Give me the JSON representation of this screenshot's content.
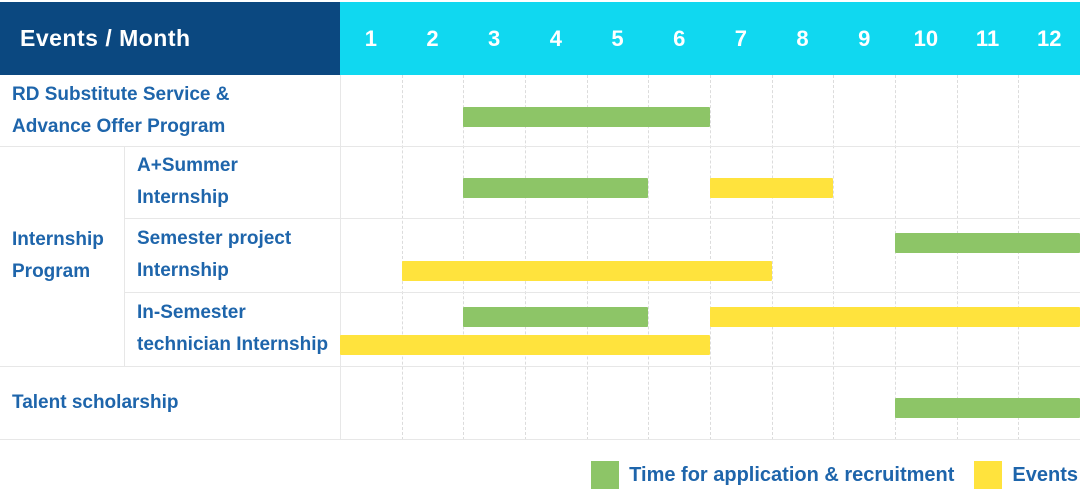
{
  "header": {
    "title": "Events / Month",
    "months": [
      "1",
      "2",
      "3",
      "4",
      "5",
      "6",
      "7",
      "8",
      "9",
      "10",
      "11",
      "12"
    ]
  },
  "colors": {
    "header_bg": "#0b4880",
    "months_bg": "#10d8f0",
    "header_text": "#ffffff",
    "label_text": "#1e65ab",
    "recruitment": "#8dc567",
    "event": "#ffe33d",
    "row_line": "#e7e7e7",
    "month_gridline": "#dcdcdc"
  },
  "legend": {
    "items": [
      {
        "series": "recruitment",
        "label": "Time for application & recruitment"
      },
      {
        "series": "event",
        "label": "Events"
      }
    ]
  },
  "chart_data": {
    "type": "gantt",
    "title": "Events / Month",
    "x_axis": {
      "label": "Month",
      "ticks": [
        1,
        2,
        3,
        4,
        5,
        6,
        7,
        8,
        9,
        10,
        11,
        12
      ],
      "range": [
        1,
        12
      ]
    },
    "series_legend": {
      "recruitment": "Time for application & recruitment",
      "event": "Events"
    },
    "group_label_lines": [
      "Internship",
      "Program"
    ],
    "rows": [
      {
        "label": "RD Substitute Service & Advance Offer Program",
        "label_lines": [
          "RD Substitute Service &",
          "Advance Offer Program"
        ],
        "group": null,
        "bars": [
          {
            "series": "recruitment",
            "start_month": 3,
            "end_month": 6,
            "lane": "single"
          }
        ]
      },
      {
        "label": "A+Summer Internship",
        "label_lines": [
          "A+Summer",
          "Internship"
        ],
        "group": "Internship Program",
        "bars": [
          {
            "series": "recruitment",
            "start_month": 3,
            "end_month": 5,
            "lane": "single"
          },
          {
            "series": "event",
            "start_month": 7,
            "end_month": 8,
            "lane": "single"
          }
        ]
      },
      {
        "label": "Semester project Internship",
        "label_lines": [
          "Semester project",
          "Internship"
        ],
        "group": "Internship Program",
        "bars": [
          {
            "series": "recruitment",
            "start_month": 10,
            "end_month": 12,
            "lane": "top"
          },
          {
            "series": "event",
            "start_month": 2,
            "end_month": 7,
            "lane": "bottom"
          }
        ]
      },
      {
        "label": "In-Semester technician Internship",
        "label_lines": [
          "In-Semester",
          "technician Internship"
        ],
        "group": "Internship Program",
        "bars": [
          {
            "series": "recruitment",
            "start_month": 3,
            "end_month": 5,
            "lane": "top"
          },
          {
            "series": "event",
            "start_month": 7,
            "end_month": 12,
            "lane": "top"
          },
          {
            "series": "event",
            "start_month": 1,
            "end_month": 6,
            "lane": "bottom"
          }
        ]
      },
      {
        "label": "Talent scholarship",
        "label_lines": [
          "Talent scholarship"
        ],
        "group": null,
        "bars": [
          {
            "series": "recruitment",
            "start_month": 10,
            "end_month": 12,
            "lane": "single"
          }
        ]
      }
    ]
  }
}
